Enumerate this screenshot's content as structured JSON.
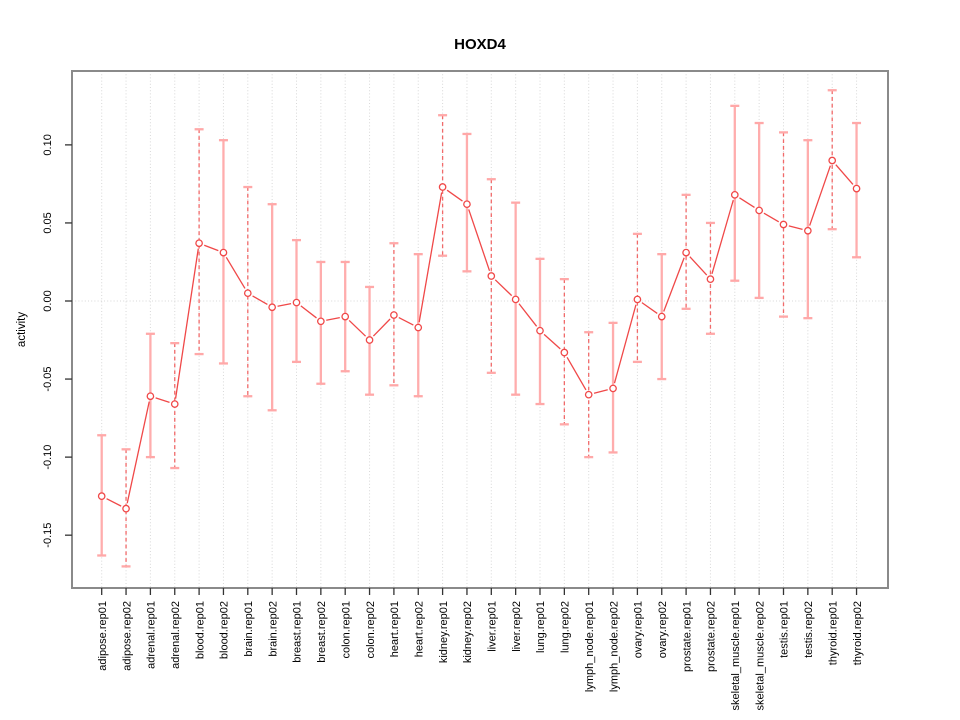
{
  "chart_data": {
    "type": "line",
    "title": "HOXD4",
    "xlabel": "",
    "ylabel": "activity",
    "legend": "none",
    "marker": "open-circle",
    "categories": [
      "adipose.rep01",
      "adipose.rep02",
      "adrenal.rep01",
      "adrenal.rep02",
      "blood.rep01",
      "blood.rep02",
      "brain.rep01",
      "brain.rep02",
      "breast.rep01",
      "breast.rep02",
      "colon.rep01",
      "colon.rep02",
      "heart.rep01",
      "heart.rep02",
      "kidney.rep01",
      "kidney.rep02",
      "liver.rep01",
      "liver.rep02",
      "lung.rep01",
      "lung.rep02",
      "lymph_node.rep01",
      "lymph_node.rep02",
      "ovary.rep01",
      "ovary.rep02",
      "prostate.rep01",
      "prostate.rep02",
      "skeletal_muscle.rep01",
      "skeletal_muscle.rep02",
      "testis.rep01",
      "testis.rep02",
      "thyroid.rep01",
      "thyroid.rep02"
    ],
    "series": [
      {
        "name": "activity",
        "values": [
          -0.125,
          -0.133,
          -0.061,
          -0.066,
          0.037,
          0.031,
          0.005,
          -0.004,
          -0.001,
          -0.013,
          -0.01,
          -0.025,
          -0.009,
          -0.017,
          0.073,
          0.062,
          0.016,
          0.001,
          -0.019,
          -0.033,
          -0.06,
          -0.056,
          0.001,
          -0.01,
          0.031,
          0.014,
          0.068,
          0.058,
          0.049,
          0.045,
          0.09,
          0.072
        ]
      }
    ],
    "error_low": [
      -0.163,
      -0.17,
      -0.1,
      -0.107,
      -0.034,
      -0.04,
      -0.061,
      -0.07,
      -0.039,
      -0.053,
      -0.045,
      -0.06,
      -0.054,
      -0.061,
      0.029,
      0.019,
      -0.046,
      -0.06,
      -0.066,
      -0.079,
      -0.1,
      -0.097,
      -0.039,
      -0.05,
      -0.005,
      -0.021,
      0.013,
      0.002,
      -0.01,
      -0.011,
      0.046,
      0.028
    ],
    "error_high": [
      -0.086,
      -0.095,
      -0.021,
      -0.027,
      0.11,
      0.103,
      0.073,
      0.062,
      0.039,
      0.025,
      0.025,
      0.009,
      0.037,
      0.03,
      0.119,
      0.107,
      0.078,
      0.063,
      0.027,
      0.014,
      -0.02,
      -0.014,
      0.043,
      0.03,
      0.068,
      0.05,
      0.125,
      0.114,
      0.108,
      0.103,
      0.135,
      0.114
    ],
    "error_bar_style": [
      "solid",
      "dashed",
      "solid",
      "dashed",
      "dashed",
      "solid",
      "dashed",
      "solid",
      "solid",
      "solid",
      "solid",
      "solid",
      "dashed",
      "solid",
      "dashed",
      "solid",
      "dashed",
      "solid",
      "solid",
      "dashed",
      "dashed",
      "solid",
      "dashed",
      "solid",
      "dashed",
      "dashed",
      "solid",
      "solid",
      "dashed",
      "solid",
      "dashed",
      "solid"
    ],
    "ytick_labels": [
      "-0.15",
      "-0.10",
      "-0.05",
      "0.00",
      "0.05",
      "0.10"
    ],
    "ytick_values": [
      -0.15,
      -0.1,
      -0.05,
      0.0,
      0.05,
      0.1
    ],
    "ylim": [
      -0.184,
      0.147
    ],
    "grid": {
      "vertical_per_category": true,
      "horizontal_at_zero": true,
      "style": "dotted"
    },
    "colors": {
      "series": "#f04848",
      "error_bar_solid": "#ffadad",
      "error_bar_dashed": "#f16a6a",
      "error_bar_cap": "#ffa8a8",
      "gridline": "#d8d8d8",
      "axis_box": "#8a8a8a",
      "tick": "#333333",
      "text": "#000000",
      "background": "#ffffff"
    }
  }
}
